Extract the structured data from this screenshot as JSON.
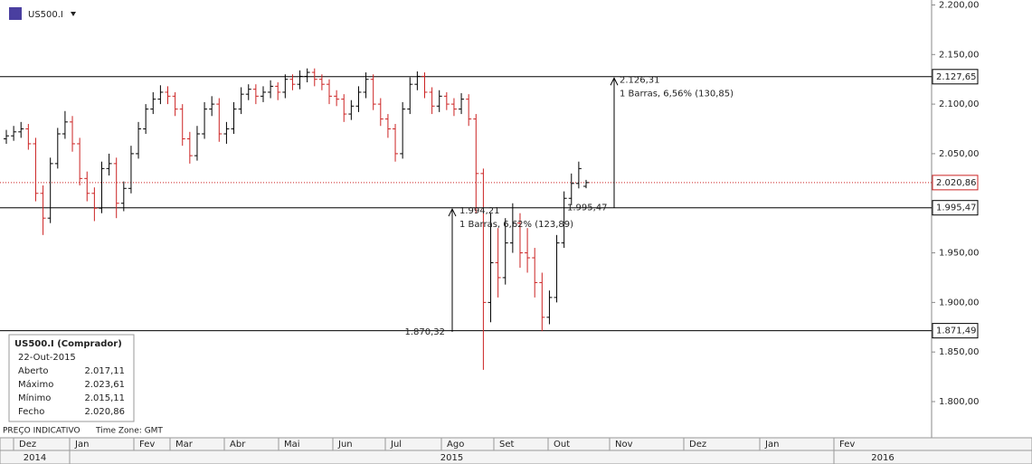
{
  "chart_data": {
    "type": "ohlc",
    "symbol": "US500.I",
    "footer": "PREÇO INDICATIVO",
    "timezone": "Time Zone: GMT",
    "months": [
      "Dez",
      "Jan",
      "Fev",
      "Mar",
      "Abr",
      "Mai",
      "Jun",
      "Jul",
      "Ago",
      "Set",
      "Out",
      "Nov",
      "Dez",
      "Jan",
      "Fev"
    ],
    "years": [
      "2014",
      "2015",
      "2016"
    ],
    "up_color": "#000000",
    "down_color": "#cc2222",
    "ylim": [
      1763.5,
      2205
    ],
    "yticks": [
      {
        "value": 2200,
        "label": "2.200,00"
      },
      {
        "value": 2150,
        "label": "2.150,00"
      },
      {
        "value": 2100,
        "label": "2.100,00"
      },
      {
        "value": 2050,
        "label": "2.050,00"
      },
      {
        "value": 1950,
        "label": "1.950,00"
      },
      {
        "value": 1900,
        "label": "1.900,00"
      },
      {
        "value": 1850,
        "label": "1.850,00"
      },
      {
        "value": 1800,
        "label": "1.800,00"
      }
    ],
    "open": [
      2065,
      2068,
      2072,
      2075,
      2060,
      2010,
      1985,
      2040,
      2070,
      2082,
      2060,
      2025,
      2010,
      1995,
      2035,
      2040,
      2000,
      2015,
      2050,
      2075,
      2095,
      2105,
      2112,
      2108,
      2095,
      2065,
      2048,
      2070,
      2095,
      2100,
      2070,
      2075,
      2095,
      2110,
      2115,
      2108,
      2112,
      2118,
      2112,
      2125,
      2120,
      2128,
      2132,
      2125,
      2120,
      2108,
      2105,
      2090,
      2098,
      2112,
      2125,
      2100,
      2085,
      2075,
      2050,
      2095,
      2120,
      2128,
      2112,
      2098,
      2108,
      2100,
      2095,
      2105,
      2085,
      2030,
      1900,
      1940,
      1925,
      1960,
      1980,
      1950,
      1945,
      1920,
      1885,
      1905,
      1960,
      2005,
      2020,
      2017.11
    ],
    "high": [
      2074,
      2078,
      2082,
      2080,
      2066,
      2018,
      2046,
      2076,
      2093,
      2088,
      2066,
      2032,
      2016,
      2042,
      2050,
      2046,
      2022,
      2058,
      2082,
      2100,
      2112,
      2119,
      2118,
      2112,
      2100,
      2072,
      2078,
      2102,
      2108,
      2106,
      2082,
      2102,
      2117,
      2120,
      2120,
      2118,
      2124,
      2122,
      2130,
      2130,
      2134,
      2136,
      2136,
      2130,
      2125,
      2114,
      2110,
      2104,
      2118,
      2132,
      2130,
      2106,
      2090,
      2080,
      2102,
      2127,
      2133,
      2132,
      2117,
      2114,
      2112,
      2106,
      2111,
      2110,
      2090,
      2035,
      1990,
      1975,
      1985,
      2000,
      1990,
      1975,
      1955,
      1930,
      1912,
      1968,
      2012,
      2030,
      2042,
      2023.61
    ],
    "low": [
      2060,
      2063,
      2066,
      2054,
      2002,
      1968,
      1980,
      2035,
      2065,
      2052,
      2018,
      2002,
      1982,
      1990,
      2028,
      1985,
      1992,
      2010,
      2045,
      2070,
      2090,
      2100,
      2100,
      2088,
      2058,
      2040,
      2043,
      2065,
      2088,
      2062,
      2060,
      2070,
      2090,
      2104,
      2100,
      2102,
      2106,
      2104,
      2106,
      2114,
      2115,
      2122,
      2118,
      2114,
      2100,
      2098,
      2082,
      2084,
      2092,
      2106,
      2094,
      2078,
      2066,
      2042,
      2045,
      2090,
      2114,
      2106,
      2090,
      2092,
      2094,
      2088,
      2090,
      2078,
      1990,
      1832,
      1880,
      1905,
      1918,
      1950,
      1935,
      1930,
      1905,
      1871,
      1878,
      1900,
      1955,
      1998,
      2015,
      2015.11
    ],
    "close": [
      2068,
      2072,
      2075,
      2060,
      2010,
      1985,
      2040,
      2070,
      2082,
      2060,
      2025,
      2010,
      1995,
      2035,
      2040,
      2000,
      2015,
      2050,
      2075,
      2095,
      2105,
      2112,
      2108,
      2095,
      2065,
      2048,
      2070,
      2095,
      2100,
      2070,
      2075,
      2095,
      2110,
      2115,
      2108,
      2112,
      2118,
      2112,
      2125,
      2120,
      2128,
      2132,
      2125,
      2120,
      2108,
      2105,
      2090,
      2098,
      2112,
      2125,
      2100,
      2085,
      2075,
      2050,
      2095,
      2120,
      2128,
      2112,
      2098,
      2108,
      2100,
      2095,
      2105,
      2085,
      2030,
      1900,
      1940,
      1925,
      1960,
      1980,
      1950,
      1945,
      1920,
      1885,
      1905,
      1960,
      2005,
      2020,
      2035,
      2020.86
    ],
    "levels": [
      {
        "value": 2127.65,
        "label": "2.127,65"
      },
      {
        "value": 1995.47,
        "label": "1.995,47"
      },
      {
        "value": 1871.49,
        "label": "1.871,49"
      }
    ],
    "current": {
      "value": 2020.86,
      "label": "2.020,86"
    },
    "measures": [
      {
        "start": {
          "value": 1995.47,
          "label": "1.995,47"
        },
        "end": {
          "value": 2126.31,
          "label": "2.126,31"
        },
        "text": "1 Barras, 6,56% (130,85)"
      },
      {
        "start": {
          "value": 1870.32,
          "label": "1.870,32"
        },
        "end": {
          "value": 1994.21,
          "label": "1.994,21"
        },
        "text": "1 Barras, 6,62% (123,89)"
      }
    ],
    "info": {
      "title": "US500.I (Comprador)",
      "date": "22-Out-2015",
      "rows": [
        {
          "label": "Aberto",
          "value": "2.017,11"
        },
        {
          "label": "Máximo",
          "value": "2.023,61"
        },
        {
          "label": "Mínimo",
          "value": "2.015,11"
        },
        {
          "label": "Fecho",
          "value": "2.020,86"
        }
      ]
    }
  }
}
